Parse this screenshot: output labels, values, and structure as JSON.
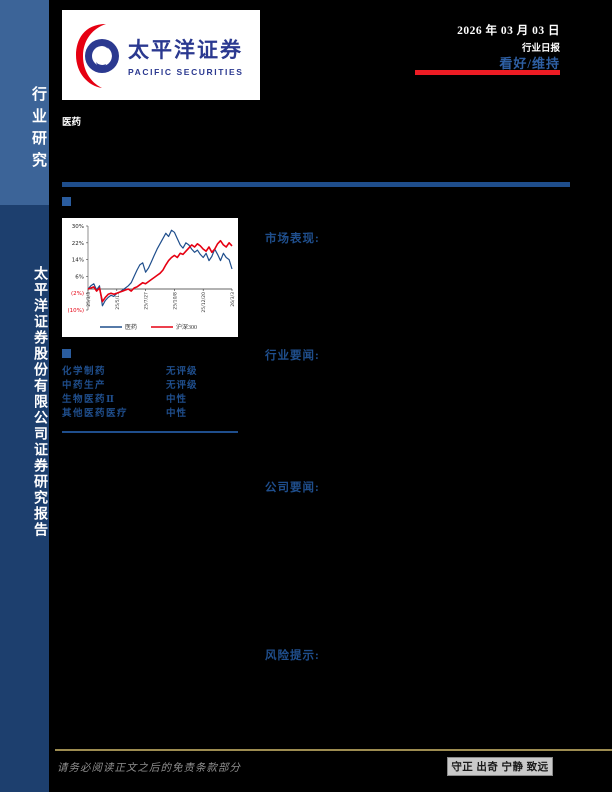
{
  "sidebar": {
    "top_label": "行业研究",
    "bottom_label": "太平洋证券股份有限公司证券研究报告"
  },
  "logo": {
    "cn": "太平洋证券",
    "en": "PACIFIC SECURITIES",
    "red": "#e60012",
    "blue": "#2b3990"
  },
  "header": {
    "date": "2026 年 03 月 03 日",
    "report_type": "行业日报",
    "rating": "看好/维持",
    "accent_red": "#ed1c24"
  },
  "industry_label": "医药",
  "sections": {
    "market": "市场表现:",
    "industry_news": "行业要闻:",
    "company_news": "公司要闻:",
    "risk": "风险提示:"
  },
  "ratings_table": {
    "rows": [
      {
        "name": "化学制药",
        "rating": "无评级"
      },
      {
        "name": "中药生产",
        "rating": "无评级"
      },
      {
        "name": "生物医药Ⅱ",
        "rating": "中性"
      },
      {
        "name": "其他医药医疗",
        "rating": "中性"
      }
    ]
  },
  "footer": {
    "disclaimer": "请务必阅读正文之后的免责条款部分",
    "motto": "守正 出奇 宁静 致远"
  },
  "chart_data": {
    "type": "line",
    "title": "",
    "xlabel": "",
    "ylabel": "",
    "ylim": [
      -10,
      30
    ],
    "grid": false,
    "legend_position": "bottom",
    "x_tick_labels": [
      "25/3/3",
      "25/5/15",
      "25/7/27",
      "25/10/8",
      "25/12/20",
      "26/3/3"
    ],
    "y_ticks": [
      30,
      22,
      14,
      6,
      -2,
      -10
    ],
    "y_tick_labels": [
      "30%",
      "22%",
      "14%",
      "6%",
      "(2%)",
      "(10%)"
    ],
    "negative_tick_color": "#e60012",
    "positive_tick_color": "#1a1a1a",
    "series": [
      {
        "name": "医药",
        "color": "#1f4e8c",
        "values": [
          0,
          1.5,
          2.5,
          -0.5,
          1.5,
          -8,
          -5.5,
          -4,
          -3,
          -3.5,
          -2,
          -1.5,
          -0.5,
          0.5,
          1.5,
          3,
          6,
          9,
          11.5,
          12.5,
          8,
          10,
          13,
          16,
          19,
          21.5,
          24,
          26.5,
          25,
          28,
          27,
          24,
          21,
          19.5,
          22,
          21,
          19,
          17.5,
          18.5,
          16.5,
          15,
          17,
          13.5,
          15.5,
          19,
          16.5,
          13.5,
          17,
          15,
          14,
          9.5
        ]
      },
      {
        "name": "沪深300",
        "color": "#e60012",
        "values": [
          0,
          0.5,
          1,
          -1,
          0.5,
          -6,
          -4,
          -2.5,
          -2,
          -2.5,
          -2,
          -1.5,
          -1,
          -0.5,
          0,
          -1,
          0.5,
          1,
          2,
          3,
          2.5,
          3.5,
          4.5,
          5.5,
          6.5,
          7.5,
          9,
          11.5,
          13.5,
          15,
          16,
          15,
          17,
          16.5,
          18,
          19.5,
          21,
          20,
          21.5,
          20.5,
          19,
          18,
          20,
          17.5,
          19,
          21.5,
          23,
          21,
          20,
          22,
          20.5
        ]
      }
    ]
  }
}
